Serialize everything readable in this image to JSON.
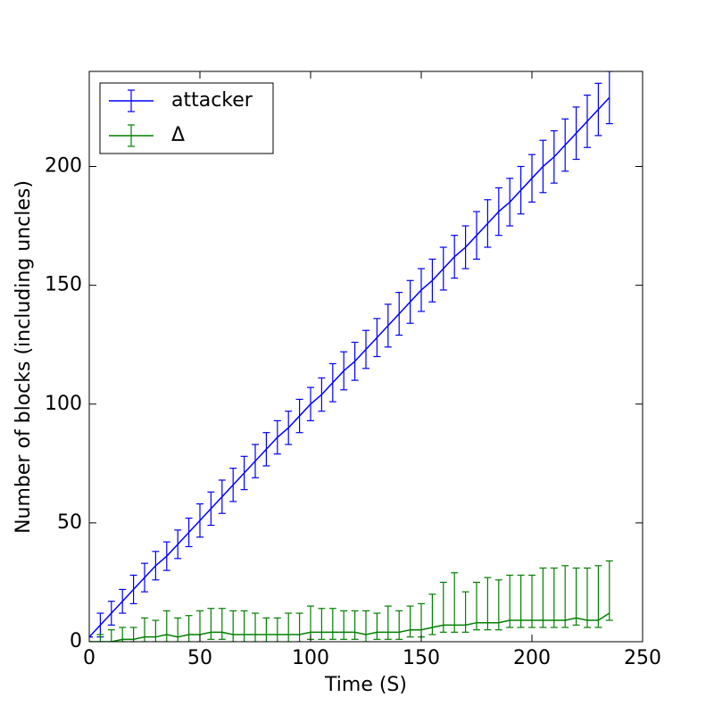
{
  "chart_data": {
    "type": "errorbar-line",
    "xlabel": "Time (S)",
    "ylabel": "Number of blocks (including uncles)",
    "xlim": [
      0,
      250
    ],
    "xticks": [
      0,
      50,
      100,
      150,
      200,
      250
    ],
    "ylim": [
      0,
      240
    ],
    "yticks": [
      0,
      50,
      100,
      150,
      200
    ],
    "legend": "upper left",
    "x": [
      0,
      5,
      10,
      15,
      20,
      25,
      30,
      35,
      40,
      45,
      50,
      55,
      60,
      65,
      70,
      75,
      80,
      85,
      90,
      95,
      100,
      105,
      110,
      115,
      120,
      125,
      130,
      135,
      140,
      145,
      150,
      155,
      160,
      165,
      170,
      175,
      180,
      185,
      190,
      195,
      200,
      205,
      210,
      215,
      220,
      225,
      230,
      235
    ],
    "series": [
      {
        "name": "attacker",
        "color": "#0000ff",
        "values": [
          2,
          7,
          12,
          17,
          22,
          27,
          32,
          36,
          41,
          46,
          51,
          56,
          61,
          66,
          71,
          76,
          81,
          86,
          90,
          95,
          100,
          104,
          109,
          114,
          118,
          123,
          128,
          133,
          138,
          143,
          148,
          152,
          157,
          162,
          166,
          171,
          176,
          181,
          185,
          190,
          195,
          200,
          204,
          209,
          214,
          219,
          224,
          229
        ],
        "yerr": [
          0,
          5,
          5,
          5,
          6,
          6,
          6,
          6,
          6,
          6,
          7,
          7,
          7,
          7,
          7,
          7,
          7,
          7,
          7,
          7,
          7,
          7,
          8,
          8,
          8,
          8,
          8,
          9,
          9,
          9,
          9,
          9,
          9,
          9,
          9,
          10,
          10,
          10,
          10,
          10,
          10,
          11,
          11,
          11,
          11,
          11,
          11,
          11
        ]
      },
      {
        "name": "Δ",
        "color": "#008000",
        "values": [
          0,
          0,
          0,
          1,
          1,
          2,
          2,
          3,
          2,
          3,
          3,
          4,
          4,
          3,
          3,
          3,
          3,
          3,
          3,
          3,
          4,
          4,
          4,
          4,
          4,
          3,
          4,
          4,
          4,
          5,
          5,
          6,
          7,
          7,
          7,
          8,
          8,
          8,
          9,
          9,
          9,
          9,
          9,
          9,
          10,
          9,
          9,
          12
        ],
        "yerr_minus": [
          0,
          0,
          0,
          1,
          1,
          2,
          2,
          3,
          2,
          3,
          3,
          3,
          3,
          3,
          3,
          3,
          3,
          3,
          3,
          3,
          3,
          3,
          3,
          3,
          3,
          3,
          3,
          3,
          3,
          3,
          3,
          3,
          3,
          3,
          3,
          3,
          3,
          3,
          3,
          3,
          3,
          3,
          3,
          3,
          3,
          3,
          3,
          3
        ],
        "yerr_plus": [
          0,
          3,
          5,
          5,
          5,
          8,
          7,
          10,
          8,
          8,
          10,
          10,
          10,
          10,
          10,
          9,
          7,
          7,
          9,
          9,
          11,
          10,
          10,
          9,
          9,
          10,
          8,
          11,
          9,
          10,
          11,
          14,
          18,
          22,
          14,
          17,
          19,
          18,
          19,
          19,
          19,
          22,
          22,
          23,
          21,
          22,
          23,
          22
        ]
      }
    ]
  }
}
